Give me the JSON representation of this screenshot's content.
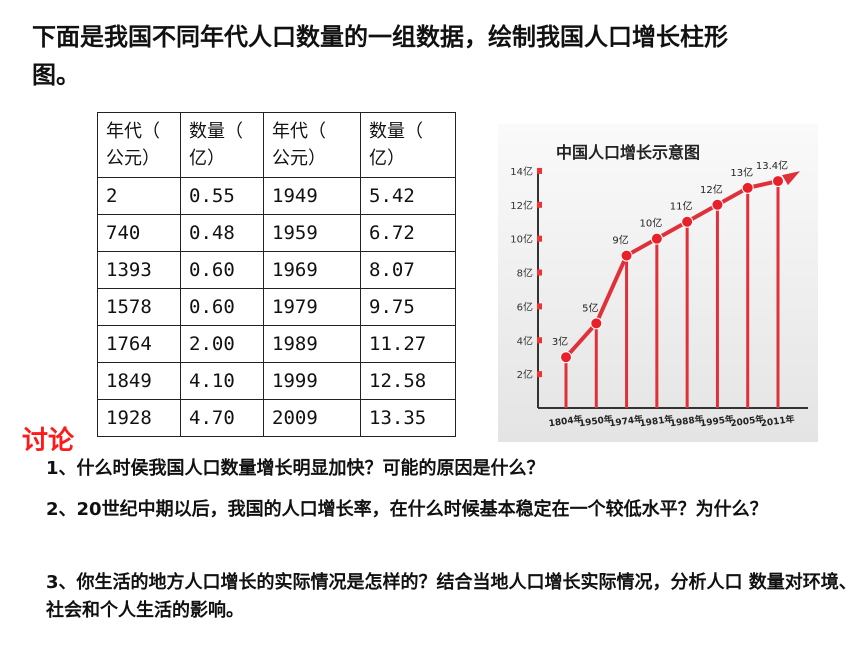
{
  "intro_text": "下面是我国不同年代人口数量的一组数据，绘制我国人口增长柱形图。",
  "table": {
    "headers": [
      "年代（\n公元）",
      "数量（\n亿）",
      "年代（\n公元）",
      "数量（\n亿）"
    ],
    "rows": [
      [
        "2",
        "0.55",
        "1949",
        "5.42"
      ],
      [
        "740",
        "0.48",
        "1959",
        "6.72"
      ],
      [
        "1393",
        "0.60",
        "1969",
        "8.07"
      ],
      [
        "1578",
        "0.60",
        "1979",
        "9.75"
      ],
      [
        "1764",
        "2.00",
        "1989",
        "11.27"
      ],
      [
        "1849",
        "4.10",
        "1999",
        "12.58"
      ],
      [
        "1928",
        "4.70",
        "2009",
        "13.35"
      ]
    ]
  },
  "chart_data": {
    "type": "line",
    "title": "中国人口增长示意图",
    "categories": [
      "1804年",
      "1950年",
      "1974年",
      "1981年",
      "1988年",
      "1995年",
      "2005年",
      "2011年"
    ],
    "values": [
      3,
      5,
      9,
      10,
      11,
      12,
      13,
      13.4
    ],
    "point_labels": [
      "3亿",
      "5亿",
      "9亿",
      "10亿",
      "11亿",
      "12亿",
      "13亿",
      "13.4亿"
    ],
    "y_ticks": [
      "2亿",
      "4亿",
      "6亿",
      "8亿",
      "10亿",
      "12亿",
      "14亿"
    ],
    "y_tick_values": [
      2,
      4,
      6,
      8,
      10,
      12,
      14
    ],
    "ylim": [
      0,
      15
    ],
    "xlabel": "",
    "ylabel": "",
    "line_color": "#e0303a",
    "marker_color": "#e8202a",
    "grid": false
  },
  "discussion": {
    "label": "讨论",
    "q1": "1、什么时侯我国人口数量增长明显加快？可能的原因是什么？",
    "q2": "2、20世纪中期以后，我国的人口增长率，在什么时候基本稳定在一个较低水平？为什么？",
    "q3": "3、你生活的地方人口增长的实际情况是怎样的？结合当地人口增长实际情况，分析人口 数量对环境、社会和个人生活的影响。"
  }
}
